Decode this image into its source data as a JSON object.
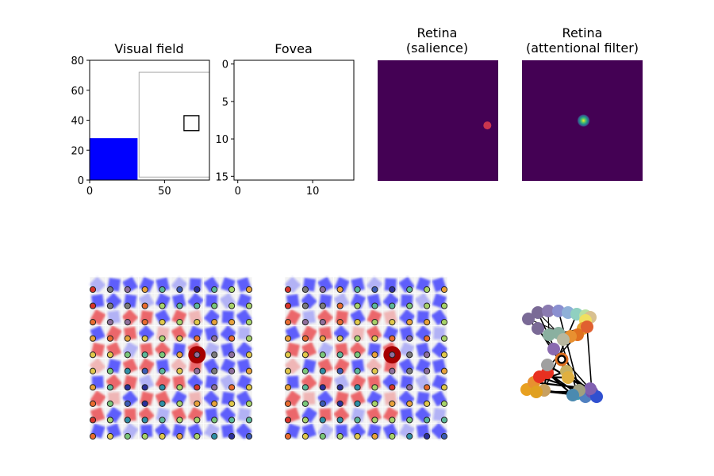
{
  "figure": {
    "panels": [
      {
        "id": "visual-field",
        "title_lines": [
          "Visual field"
        ]
      },
      {
        "id": "fovea",
        "title_lines": [
          "Fovea"
        ]
      },
      {
        "id": "retina-salience",
        "title_lines": [
          "Retina",
          "(salience)"
        ]
      },
      {
        "id": "retina-attention",
        "title_lines": [
          "Retina",
          "(attentional filter)"
        ]
      }
    ]
  },
  "colors": {
    "blue_object": "#0000ff",
    "retina_background": "#440154",
    "salience_dot": "#c9354e",
    "focus_marker": "#a50000",
    "ring_marker": "#000000"
  },
  "chart_data": [
    {
      "id": "visual-field",
      "type": "scene",
      "xlim": [
        0,
        80
      ],
      "ylim": [
        0,
        80
      ],
      "xticks": [
        0,
        50
      ],
      "yticks": [
        0,
        20,
        40,
        60,
        80
      ],
      "objects": [
        {
          "kind": "filled-rect",
          "x": [
            0,
            32
          ],
          "y": [
            0,
            28
          ],
          "color": "#0000ff"
        },
        {
          "kind": "outline-rect",
          "x": [
            33,
            80
          ],
          "y": [
            2,
            72
          ],
          "color": "#aaaaaa"
        },
        {
          "kind": "outline-square",
          "x": [
            63,
            73
          ],
          "y": [
            33,
            43
          ],
          "color": "#000000"
        }
      ]
    },
    {
      "id": "fovea",
      "type": "image",
      "xlim": [
        -0.5,
        15.5
      ],
      "ylim": [
        15.5,
        -0.5
      ],
      "xticks": [
        0,
        10
      ],
      "yticks": [
        0,
        5,
        10,
        15
      ]
    },
    {
      "id": "retina-salience",
      "type": "heatmap",
      "background": "#440154",
      "peak": {
        "x": 0.91,
        "y": 0.54,
        "color": "#c9354e"
      }
    },
    {
      "id": "retina-attention",
      "type": "heatmap",
      "background": "#440154",
      "peak": {
        "x": 0.51,
        "y": 0.5
      }
    },
    {
      "id": "grid-map-a",
      "type": "scatter",
      "grid": [
        10,
        10
      ],
      "focus": {
        "col": 6,
        "row": 4
      }
    },
    {
      "id": "grid-map-b",
      "type": "scatter",
      "grid": [
        10,
        10
      ],
      "focus": {
        "col": 6,
        "row": 4
      }
    },
    {
      "id": "cluster-graph",
      "type": "scatter"
    }
  ]
}
